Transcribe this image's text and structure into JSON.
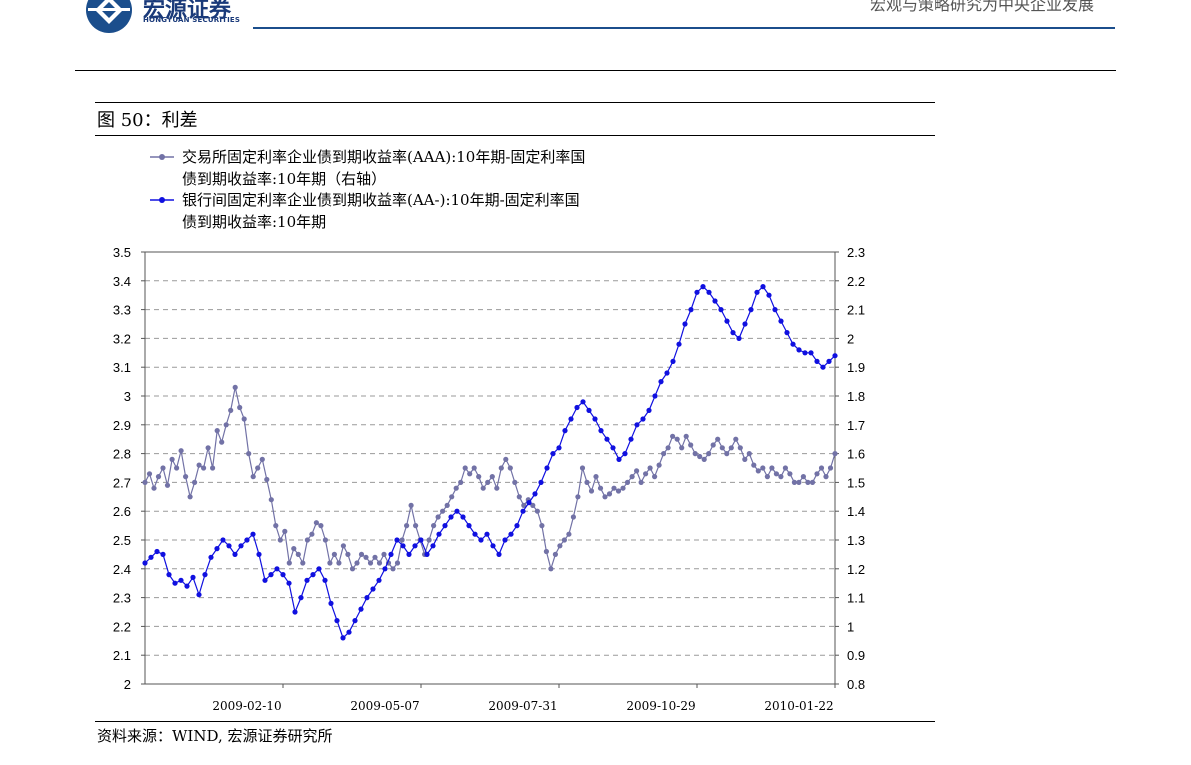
{
  "header": {
    "brand_cn": "宏源证券",
    "brand_en": "HONGYUAN SECURITIES",
    "tag": "宏观与策略研究为中央企业发展"
  },
  "figure": {
    "title": "图 50：利差",
    "source": "资料来源：WIND, 宏源证券研究所"
  },
  "colors": {
    "series1": "#7272a6",
    "series2": "#1010e0",
    "grid": "#9a9a9a"
  },
  "chart_data": {
    "type": "line",
    "grid": true,
    "legend_position": "top-left",
    "x_tick_labels": [
      "2009-02-10",
      "2009-05-07",
      "2009-07-31",
      "2009-10-29",
      "2010-01-22"
    ],
    "left_axis": {
      "ylim": [
        2,
        3.5
      ],
      "ticks": [
        "2",
        "2.1",
        "2.2",
        "2.3",
        "2.4",
        "2.5",
        "2.6",
        "2.7",
        "2.8",
        "2.9",
        "3",
        "3.1",
        "3.2",
        "3.3",
        "3.4",
        "3.5"
      ]
    },
    "right_axis": {
      "ylim": [
        0.8,
        2.3
      ],
      "ticks": [
        "0.8",
        "0.9",
        "1",
        "1.1",
        "1.2",
        "1.3",
        "1.4",
        "1.5",
        "1.6",
        "1.7",
        "1.8",
        "1.9",
        "2",
        "2.1",
        "2.2",
        "2.3"
      ]
    },
    "series": [
      {
        "name": "交易所固定利率企业债到期收益率(AAA):10年期-固定利率国债到期收益率:10年期（右轴）",
        "legend_lines": [
          "交易所固定利率企业债到期收益率(AAA):10年期-固定利率国",
          "债到期收益率:10年期（右轴）"
        ],
        "axis": "right",
        "color": "#7272a6",
        "values": [
          1.5,
          1.53,
          1.48,
          1.52,
          1.55,
          1.49,
          1.58,
          1.55,
          1.61,
          1.52,
          1.45,
          1.5,
          1.56,
          1.55,
          1.62,
          1.55,
          1.68,
          1.64,
          1.7,
          1.75,
          1.83,
          1.76,
          1.72,
          1.6,
          1.52,
          1.55,
          1.58,
          1.51,
          1.44,
          1.35,
          1.3,
          1.33,
          1.22,
          1.27,
          1.25,
          1.22,
          1.3,
          1.32,
          1.36,
          1.35,
          1.3,
          1.22,
          1.25,
          1.22,
          1.28,
          1.25,
          1.2,
          1.22,
          1.25,
          1.24,
          1.22,
          1.24,
          1.22,
          1.25,
          1.22,
          1.2,
          1.22,
          1.3,
          1.35,
          1.42,
          1.35,
          1.3,
          1.25,
          1.3,
          1.35,
          1.38,
          1.4,
          1.42,
          1.45,
          1.48,
          1.5,
          1.55,
          1.53,
          1.55,
          1.52,
          1.48,
          1.5,
          1.52,
          1.48,
          1.55,
          1.58,
          1.55,
          1.5,
          1.45,
          1.42,
          1.44,
          1.42,
          1.4,
          1.35,
          1.26,
          1.2,
          1.25,
          1.28,
          1.3,
          1.32,
          1.38,
          1.45,
          1.55,
          1.5,
          1.47,
          1.52,
          1.48,
          1.45,
          1.46,
          1.48,
          1.47,
          1.48,
          1.5,
          1.52,
          1.54,
          1.5,
          1.53,
          1.55,
          1.52,
          1.56,
          1.6,
          1.62,
          1.66,
          1.65,
          1.62,
          1.66,
          1.63,
          1.6,
          1.59,
          1.58,
          1.6,
          1.63,
          1.65,
          1.62,
          1.6,
          1.62,
          1.65,
          1.62,
          1.58,
          1.6,
          1.56,
          1.54,
          1.55,
          1.52,
          1.55,
          1.53,
          1.52,
          1.55,
          1.53,
          1.5,
          1.5,
          1.52,
          1.5,
          1.5,
          1.53,
          1.55,
          1.52,
          1.55,
          1.6
        ]
      },
      {
        "name": "银行间固定利率企业债到期收益率(AA-):10年期-固定利率国债到期收益率:10年期",
        "legend_lines": [
          "银行间固定利率企业债到期收益率(AA-):10年期-固定利率国",
          "债到期收益率:10年期"
        ],
        "axis": "left",
        "color": "#1010e0",
        "values": [
          2.42,
          2.44,
          2.46,
          2.45,
          2.38,
          2.35,
          2.36,
          2.34,
          2.37,
          2.31,
          2.38,
          2.44,
          2.47,
          2.5,
          2.48,
          2.45,
          2.48,
          2.5,
          2.52,
          2.45,
          2.36,
          2.38,
          2.4,
          2.38,
          2.35,
          2.25,
          2.3,
          2.36,
          2.38,
          2.4,
          2.36,
          2.28,
          2.22,
          2.16,
          2.18,
          2.22,
          2.26,
          2.3,
          2.33,
          2.36,
          2.4,
          2.45,
          2.5,
          2.48,
          2.45,
          2.48,
          2.5,
          2.45,
          2.48,
          2.52,
          2.55,
          2.58,
          2.6,
          2.58,
          2.55,
          2.52,
          2.5,
          2.52,
          2.48,
          2.45,
          2.5,
          2.52,
          2.55,
          2.6,
          2.63,
          2.66,
          2.7,
          2.75,
          2.8,
          2.82,
          2.88,
          2.92,
          2.96,
          2.98,
          2.95,
          2.92,
          2.88,
          2.85,
          2.82,
          2.78,
          2.8,
          2.85,
          2.9,
          2.92,
          2.95,
          3.0,
          3.05,
          3.08,
          3.12,
          3.18,
          3.25,
          3.3,
          3.36,
          3.38,
          3.36,
          3.33,
          3.3,
          3.26,
          3.22,
          3.2,
          3.25,
          3.3,
          3.36,
          3.38,
          3.35,
          3.3,
          3.26,
          3.22,
          3.18,
          3.16,
          3.15,
          3.15,
          3.12,
          3.1,
          3.12,
          3.14
        ]
      }
    ]
  }
}
